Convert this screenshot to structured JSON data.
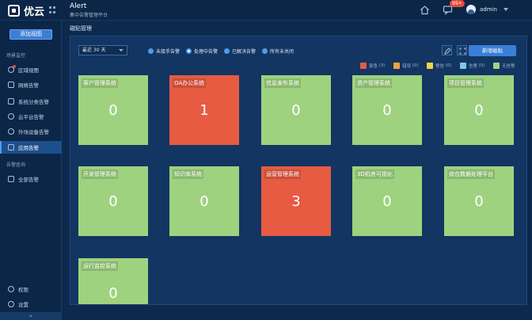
{
  "header": {
    "logo_text": "优云",
    "title": "Alert",
    "subtitle": "集中告警管理平台",
    "badge_count": "99+",
    "user": "admin"
  },
  "sidebar": {
    "add_button": "添加视图",
    "section_monitor": "场景监控",
    "items": [
      {
        "label": "区域视图",
        "icon": "map-icon"
      },
      {
        "label": "网络告警",
        "icon": "network-icon"
      },
      {
        "label": "系统分类告警",
        "icon": "system-icon"
      },
      {
        "label": "云平台告警",
        "icon": "cloud-icon"
      },
      {
        "label": "外场设备告警",
        "icon": "device-icon"
      },
      {
        "label": "应用告警",
        "icon": "app-icon"
      }
    ],
    "section_query": "告警查询",
    "query_item": "全部告警",
    "permissions": "权限",
    "settings": "设置",
    "collapse": "«"
  },
  "main": {
    "breadcrumb": "磁贴管理",
    "time_select": "最近 30 天",
    "filters": [
      {
        "label": "未接手告警",
        "checked": false
      },
      {
        "label": "处理中告警",
        "checked": true
      },
      {
        "label": "已解决告警",
        "checked": false
      },
      {
        "label": "所有未关闭",
        "checked": false
      }
    ],
    "new_button": "新增磁贴",
    "legend": [
      {
        "label": "紧急",
        "count": "(3)",
        "color": "#e65b42"
      },
      {
        "label": "错误",
        "count": "(0)",
        "color": "#f2a340"
      },
      {
        "label": "警告",
        "count": "(0)",
        "color": "#f2d24a"
      },
      {
        "label": "告警",
        "count": "(0)",
        "color": "#7ec8e3"
      },
      {
        "label": "无告警",
        "count": "",
        "color": "#9ed27f"
      }
    ],
    "tiles": [
      {
        "name": "客户管理系统",
        "count": "0",
        "status": "ok"
      },
      {
        "name": "OA办公系统",
        "count": "1",
        "status": "critical"
      },
      {
        "name": "信息发布系统",
        "count": "0",
        "status": "ok"
      },
      {
        "name": "资产管理系统",
        "count": "0",
        "status": "ok"
      },
      {
        "name": "项目管理系统",
        "count": "0",
        "status": "ok"
      },
      {
        "name": "开发管理系统",
        "count": "0",
        "status": "ok"
      },
      {
        "name": "知识库系统",
        "count": "0",
        "status": "ok"
      },
      {
        "name": "运营管理系统",
        "count": "3",
        "status": "critical"
      },
      {
        "name": "3D机房可视化",
        "count": "0",
        "status": "ok"
      },
      {
        "name": "综合数据处理平台",
        "count": "0",
        "status": "ok"
      },
      {
        "name": "运行监控系统",
        "count": "0",
        "status": "ok"
      }
    ],
    "colors": {
      "ok": "#9ed27f",
      "critical": "#e65b42"
    }
  }
}
